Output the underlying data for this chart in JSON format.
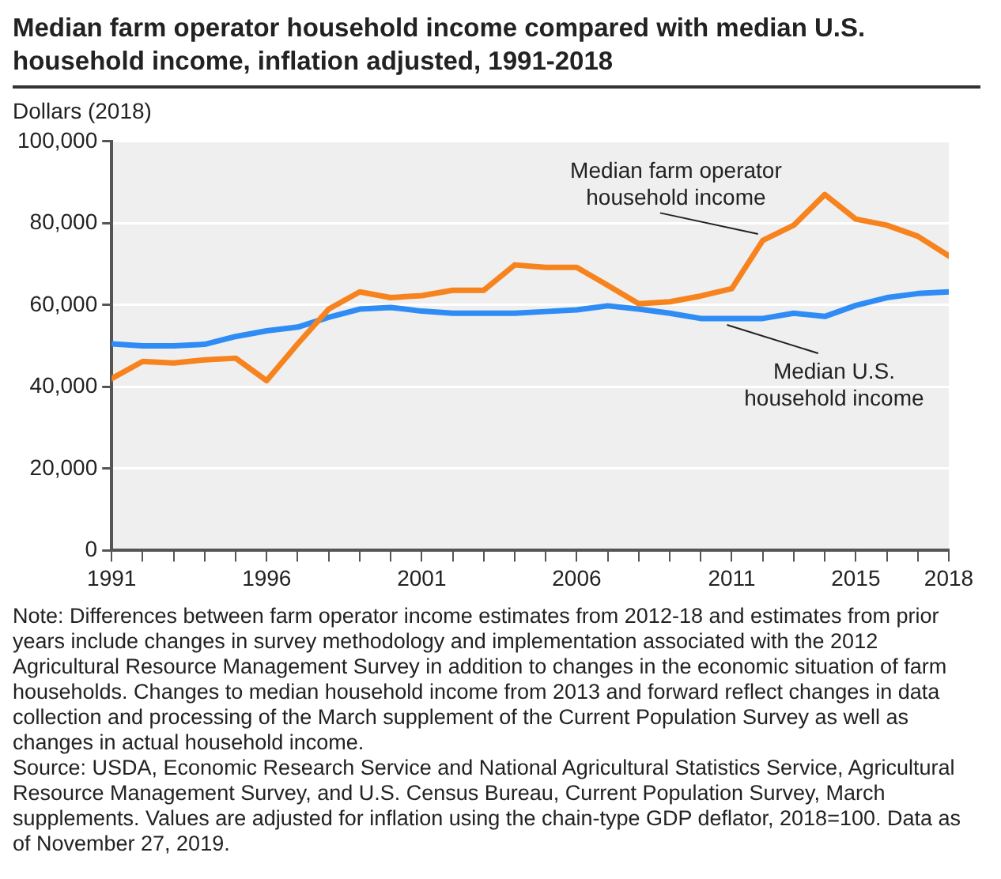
{
  "chart_data": {
    "type": "line",
    "title": "Median farm operator household income compared with median U.S. household income, inflation adjusted, 1991-2018",
    "ylabel": "Dollars (2018)",
    "x": [
      1991,
      1992,
      1993,
      1994,
      1995,
      1996,
      1997,
      1998,
      1999,
      2000,
      2001,
      2002,
      2003,
      2004,
      2005,
      2006,
      2007,
      2008,
      2009,
      2010,
      2011,
      2012,
      2013,
      2014,
      2015,
      2016,
      2017,
      2018
    ],
    "series": [
      {
        "name": "Median farm operator household income",
        "color": "#f7831e",
        "values": [
          42000,
          46200,
          45800,
          46600,
          47000,
          41500,
          50500,
          59000,
          63200,
          61800,
          62300,
          63600,
          63600,
          69800,
          69200,
          69200,
          64800,
          60300,
          60800,
          62200,
          64000,
          75800,
          79500,
          87000,
          81000,
          79500,
          76800,
          72000
        ]
      },
      {
        "name": "Median U.S. household income",
        "color": "#2f8cf5",
        "values": [
          50500,
          50000,
          50000,
          50400,
          52300,
          53700,
          54600,
          57000,
          59000,
          59400,
          58500,
          58000,
          58000,
          58000,
          58400,
          58800,
          59800,
          59000,
          58000,
          56700,
          56700,
          56700,
          58000,
          57200,
          59900,
          61800,
          62800,
          63200
        ]
      }
    ],
    "xlim": [
      1991,
      2018
    ],
    "xticks": [
      1991,
      {
        "value": 1992,
        "label": null
      },
      {
        "value": 1993,
        "label": null
      },
      {
        "value": 1994,
        "label": null
      },
      {
        "value": 1995,
        "label": null
      },
      1996,
      {
        "value": 1997,
        "label": null
      },
      {
        "value": 1998,
        "label": null
      },
      {
        "value": 1999,
        "label": null
      },
      {
        "value": 2000,
        "label": null
      },
      2001,
      {
        "value": 2002,
        "label": null
      },
      {
        "value": 2003,
        "label": null
      },
      {
        "value": 2004,
        "label": null
      },
      {
        "value": 2005,
        "label": null
      },
      2006,
      {
        "value": 2007,
        "label": null
      },
      {
        "value": 2008,
        "label": null
      },
      {
        "value": 2009,
        "label": null
      },
      {
        "value": 2010,
        "label": null
      },
      2011,
      {
        "value": 2012,
        "label": null
      },
      {
        "value": 2013,
        "label": null
      },
      {
        "value": 2014,
        "label": null
      },
      2015,
      {
        "value": 2016,
        "label": null
      },
      {
        "value": 2017,
        "label": null
      },
      2018
    ],
    "ylim": [
      0,
      100000
    ],
    "yticks": [
      0,
      {
        "value": 20000,
        "label": "20,000"
      },
      {
        "value": 40000,
        "label": "40,000"
      },
      {
        "value": 60000,
        "label": "60,000"
      },
      {
        "value": 80000,
        "label": "80,000"
      },
      {
        "value": 100000,
        "label": "100,000"
      }
    ],
    "grid": "y",
    "legend": false,
    "marker": "none",
    "line_style": "solid",
    "annotations": [
      "Note: Differences between farm operator income estimates from 2012-18 and estimates from prior years include changes in survey methodology and implementation associated with the 2012 Agricultural Resource Management Survey in addition to changes in the economic situation of farm households. Changes to median household income from 2013 and forward reflect changes in data collection and processing of the March supplement of the Current Population Survey as well as changes in actual household income.",
      "Source: USDA, Economic Research Service and National Agricultural Statistics Service, Agricultural Resource Management Survey, and U.S. Census Bureau, Current Population Survey, March supplements. Values are adjusted for inflation using the chain-type GDP deflator, 2018=100. Data as of November 27, 2019."
    ]
  }
}
